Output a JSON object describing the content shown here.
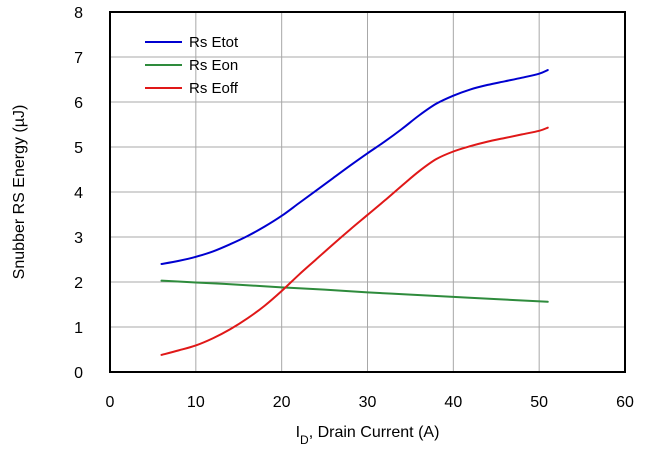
{
  "chart_data": {
    "type": "line",
    "title": "",
    "xlabel_main": "I",
    "xlabel_sub": "D",
    "xlabel_rest": ", Drain Current (A)",
    "ylabel": "Snubber RS Energy (µJ)",
    "xlim": [
      0,
      60
    ],
    "ylim": [
      0,
      8
    ],
    "xticks": [
      0,
      10,
      20,
      30,
      40,
      50,
      60
    ],
    "yticks": [
      0,
      1,
      2,
      3,
      4,
      5,
      6,
      7,
      8
    ],
    "grid": true,
    "legend_position": "top-left",
    "series": [
      {
        "name": "Rs Etot",
        "color": "#0000d0",
        "x": [
          6,
          8,
          10,
          12,
          14,
          16,
          18,
          20,
          22,
          24,
          26,
          28,
          30,
          32,
          34,
          36,
          38,
          40,
          42,
          44,
          46,
          48,
          50,
          51
        ],
        "y": [
          2.4,
          2.47,
          2.56,
          2.68,
          2.84,
          3.02,
          3.23,
          3.47,
          3.75,
          4.03,
          4.31,
          4.59,
          4.86,
          5.12,
          5.4,
          5.7,
          5.96,
          6.14,
          6.28,
          6.38,
          6.46,
          6.54,
          6.63,
          6.71
        ]
      },
      {
        "name": "Rs Eon",
        "color": "#2e8b3c",
        "x": [
          6,
          10,
          15,
          20,
          25,
          30,
          35,
          40,
          45,
          51
        ],
        "y": [
          2.03,
          1.99,
          1.94,
          1.88,
          1.83,
          1.77,
          1.72,
          1.67,
          1.62,
          1.56
        ]
      },
      {
        "name": "Rs Eoff",
        "color": "#e01818",
        "x": [
          6,
          8,
          10,
          12,
          14,
          16,
          18,
          20,
          22,
          24,
          26,
          28,
          30,
          32,
          34,
          36,
          38,
          40,
          42,
          44,
          46,
          48,
          50,
          51
        ],
        "y": [
          0.38,
          0.48,
          0.59,
          0.75,
          0.95,
          1.19,
          1.47,
          1.8,
          2.16,
          2.5,
          2.84,
          3.17,
          3.49,
          3.81,
          4.14,
          4.46,
          4.73,
          4.9,
          5.02,
          5.12,
          5.2,
          5.28,
          5.36,
          5.43
        ]
      }
    ]
  }
}
